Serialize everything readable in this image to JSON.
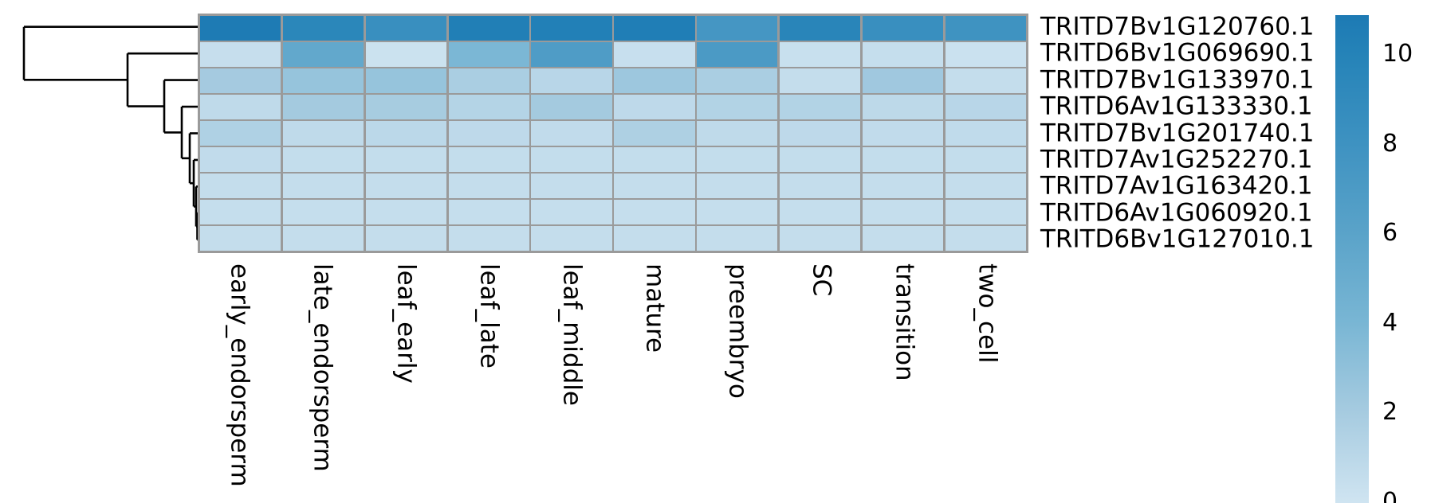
{
  "figure": {
    "kind": "clustered expression heatmap",
    "background": "#ffffff",
    "text_color": "#000000"
  },
  "chart_data": {
    "type": "heatmap",
    "columns": [
      "early_endorsperm",
      "late_endorsperm",
      "leaf_early",
      "leaf_late",
      "leaf_middle",
      "mature",
      "preembryo",
      "SC",
      "transition",
      "two_cell"
    ],
    "rows": [
      "TRITD7Bv1G120760.1",
      "TRITD6Bv1G069690.1",
      "TRITD7Bv1G133970.1",
      "TRITD6Av1G133330.1",
      "TRITD7Bv1G201740.1",
      "TRITD7Av1G252270.1",
      "TRITD7Av1G163420.1",
      "TRITD6Av1G060920.1",
      "TRITD6Bv1G127010.1"
    ],
    "values": [
      [
        10.8,
        9.5,
        8.4,
        10.4,
        10.3,
        10.5,
        7.5,
        9.7,
        8.4,
        7.9
      ],
      [
        0.45,
        5.5,
        0.2,
        3.9,
        6.8,
        0.4,
        7.1,
        0.35,
        0.5,
        0.25
      ],
      [
        2.05,
        2.7,
        2.7,
        1.8,
        1.1,
        2.4,
        1.8,
        0.55,
        2.25,
        0.55
      ],
      [
        0.8,
        2.1,
        1.95,
        1.3,
        2.1,
        0.85,
        1.4,
        1.4,
        0.9,
        1.1
      ],
      [
        1.55,
        0.8,
        1.0,
        0.85,
        0.7,
        1.6,
        0.8,
        0.85,
        0.7,
        0.75
      ],
      [
        0.7,
        0.6,
        0.6,
        0.6,
        0.6,
        0.6,
        0.6,
        0.6,
        0.6,
        0.6
      ],
      [
        0.55,
        0.55,
        0.55,
        0.55,
        0.55,
        0.55,
        0.55,
        0.55,
        0.55,
        0.55
      ],
      [
        0.5,
        0.5,
        0.5,
        0.5,
        0.5,
        0.5,
        0.5,
        0.5,
        0.5,
        0.5
      ],
      [
        0.55,
        0.55,
        0.55,
        0.55,
        0.55,
        0.55,
        0.55,
        0.55,
        0.55,
        0.55
      ]
    ],
    "grid_line_color": "#9a9a9a",
    "colormap_stops": [
      [
        0,
        "#cfe4f1"
      ],
      [
        2,
        "#a6cbe0"
      ],
      [
        4,
        "#79b6d4"
      ],
      [
        6,
        "#5aa3c9"
      ],
      [
        8,
        "#3e92c1"
      ],
      [
        10,
        "#2583b8"
      ],
      [
        10.87,
        "#1d7ab4"
      ]
    ],
    "colorbar": {
      "tick_labels": [
        "10",
        "8",
        "6",
        "4",
        "2",
        "0"
      ],
      "tick_values": [
        10,
        8,
        6,
        4,
        2,
        0
      ],
      "vmin": 0,
      "vmax": 10.87,
      "position": "right"
    },
    "dendrogram": {
      "orientation": "left",
      "structure": "comb",
      "line_color": "#000000",
      "merge_x": [
        30,
        160,
        206,
        228,
        238,
        243,
        246,
        247.5
      ],
      "leaf_order": [
        "TRITD7Bv1G120760.1",
        "TRITD6Bv1G069690.1",
        "TRITD7Bv1G133970.1",
        "TRITD6Av1G133330.1",
        "TRITD7Bv1G201740.1",
        "TRITD7Av1G252270.1",
        "TRITD7Av1G163420.1",
        "TRITD6Av1G060920.1",
        "TRITD6Bv1G127010.1"
      ]
    },
    "legend_position": "right",
    "grid": true
  }
}
